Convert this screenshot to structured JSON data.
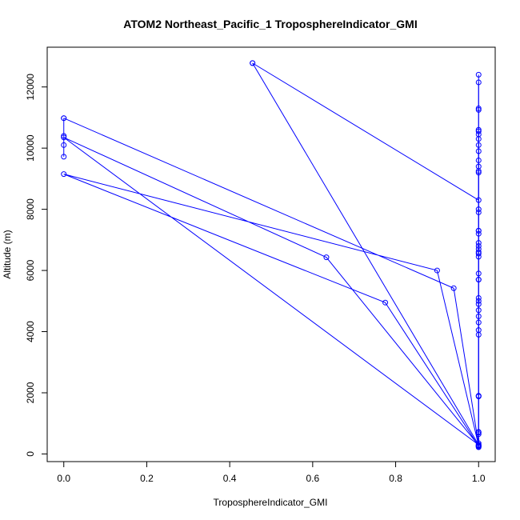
{
  "chart_data": {
    "type": "line",
    "title": "ATOM2 Northeast_Pacific_1 TroposphereIndicator_GMI",
    "xlabel": "TroposphereIndicator_GMI",
    "ylabel": "Altitude (m)",
    "xlim": [
      -0.04,
      1.04
    ],
    "ylim": [
      -250,
      13300
    ],
    "x_ticks": [
      0.0,
      0.2,
      0.4,
      0.6,
      0.8,
      1.0
    ],
    "x_tick_labels": [
      "0.0",
      "0.2",
      "0.4",
      "0.6",
      "0.8",
      "1.0"
    ],
    "y_ticks": [
      0,
      2000,
      4000,
      6000,
      8000,
      10000,
      12000
    ],
    "y_tick_labels": [
      "0",
      "2000",
      "4000",
      "6000",
      "8000",
      "10000",
      "12000"
    ],
    "grid": false,
    "legend": "none",
    "series_color": "#0000ff",
    "series": [
      {
        "x": [
          0.455,
          1.0,
          1.0,
          1.0,
          1.0,
          1.0,
          1.0,
          1.0,
          1.0,
          1.0,
          1.0,
          1.0,
          1.0,
          1.0,
          1.0,
          1.0,
          1.0,
          1.0,
          1.0,
          1.0
        ],
        "y": [
          12780,
          8300,
          8000,
          7300,
          6900,
          6600,
          5700,
          5000,
          4300,
          3900,
          1900,
          700,
          250,
          350,
          1900,
          5700,
          7900,
          9600,
          11300,
          12400
        ]
      },
      {
        "x": [
          1.0,
          1.0,
          1.0,
          1.0,
          1.0,
          1.0,
          1.0,
          1.0,
          1.0,
          1.0,
          1.0,
          1.0,
          1.0,
          1.0,
          1.0,
          0.455
        ],
        "y": [
          12150,
          11250,
          10600,
          10450,
          10100,
          9400,
          9250,
          7200,
          6700,
          6450,
          5100,
          4700,
          4050,
          650,
          300,
          12780
        ]
      },
      {
        "x": [
          0.0,
          0.0,
          0.0,
          0.0
        ],
        "y": [
          10980,
          10400,
          10100,
          9720
        ]
      },
      {
        "x": [
          0.0,
          0.94,
          1.0,
          0.0,
          0.633,
          1.0,
          0.9,
          0.0,
          0.775,
          1.0
        ],
        "y": [
          10980,
          5420,
          300,
          10350,
          6430,
          280,
          6000,
          9150,
          4950,
          260
        ]
      },
      {
        "x": [
          1.0,
          1.0,
          1.0,
          1.0,
          1.0,
          1.0,
          1.0,
          1.0,
          1.0,
          1.0,
          1.0,
          1.0,
          1.0,
          1.0
        ],
        "y": [
          10550,
          10300,
          9900,
          9200,
          7300,
          6800,
          6550,
          5900,
          4900,
          4500,
          1880,
          720,
          220,
          240
        ]
      }
    ]
  }
}
